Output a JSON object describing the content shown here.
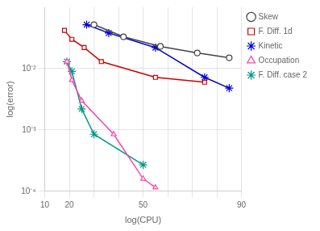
{
  "chart_data": {
    "type": "line",
    "xlabel": "log(CPU)",
    "ylabel": "log(error)",
    "xlim": [
      10,
      90
    ],
    "ylim": [
      0.0001,
      0.1
    ],
    "log": "y",
    "xticks": [
      10,
      20,
      {
        "value": 30,
        "label": null
      },
      {
        "value": 40,
        "label": null
      },
      50,
      {
        "value": 60,
        "label": null
      },
      {
        "value": 70,
        "label": null
      },
      {
        "value": 80,
        "label": null
      },
      90
    ],
    "yticks": [
      {
        "value": 0.0001,
        "label": "10⁻⁴"
      },
      {
        "value": 0.001,
        "label": "10⁻³"
      },
      {
        "value": 0.01,
        "label": "10⁻²"
      }
    ],
    "grid": true,
    "legend": "right",
    "series": [
      {
        "name": "Skew",
        "color": "#444444",
        "marker": "circle",
        "x": [
          30,
          42,
          57,
          72,
          85
        ],
        "values": [
          0.052,
          0.033,
          0.023,
          0.018,
          0.015
        ]
      },
      {
        "name": "F. Diff. 1d",
        "color": "#cc0000",
        "marker": "square",
        "x": [
          18,
          21,
          26,
          33,
          55,
          75
        ],
        "values": [
          0.042,
          0.03,
          0.022,
          0.013,
          0.0072,
          0.006
        ]
      },
      {
        "name": "Kinetic",
        "color": "#0000cc",
        "marker": "star",
        "x": [
          27,
          36,
          55,
          75,
          85
        ],
        "values": [
          0.052,
          0.038,
          0.022,
          0.0072,
          0.0048
        ]
      },
      {
        "name": "Occupation",
        "color": "#ff44aa",
        "marker": "triangle",
        "x": [
          19,
          21,
          25,
          38,
          50,
          55
        ],
        "values": [
          0.013,
          0.0065,
          0.003,
          0.00085,
          0.00016,
          0.000115
        ]
      },
      {
        "name": "F. Diff. case 2",
        "color": "#009988",
        "marker": "star",
        "x": [
          19,
          21,
          25,
          30,
          50
        ],
        "values": [
          0.013,
          0.009,
          0.0022,
          0.00085,
          0.00027
        ]
      }
    ]
  }
}
